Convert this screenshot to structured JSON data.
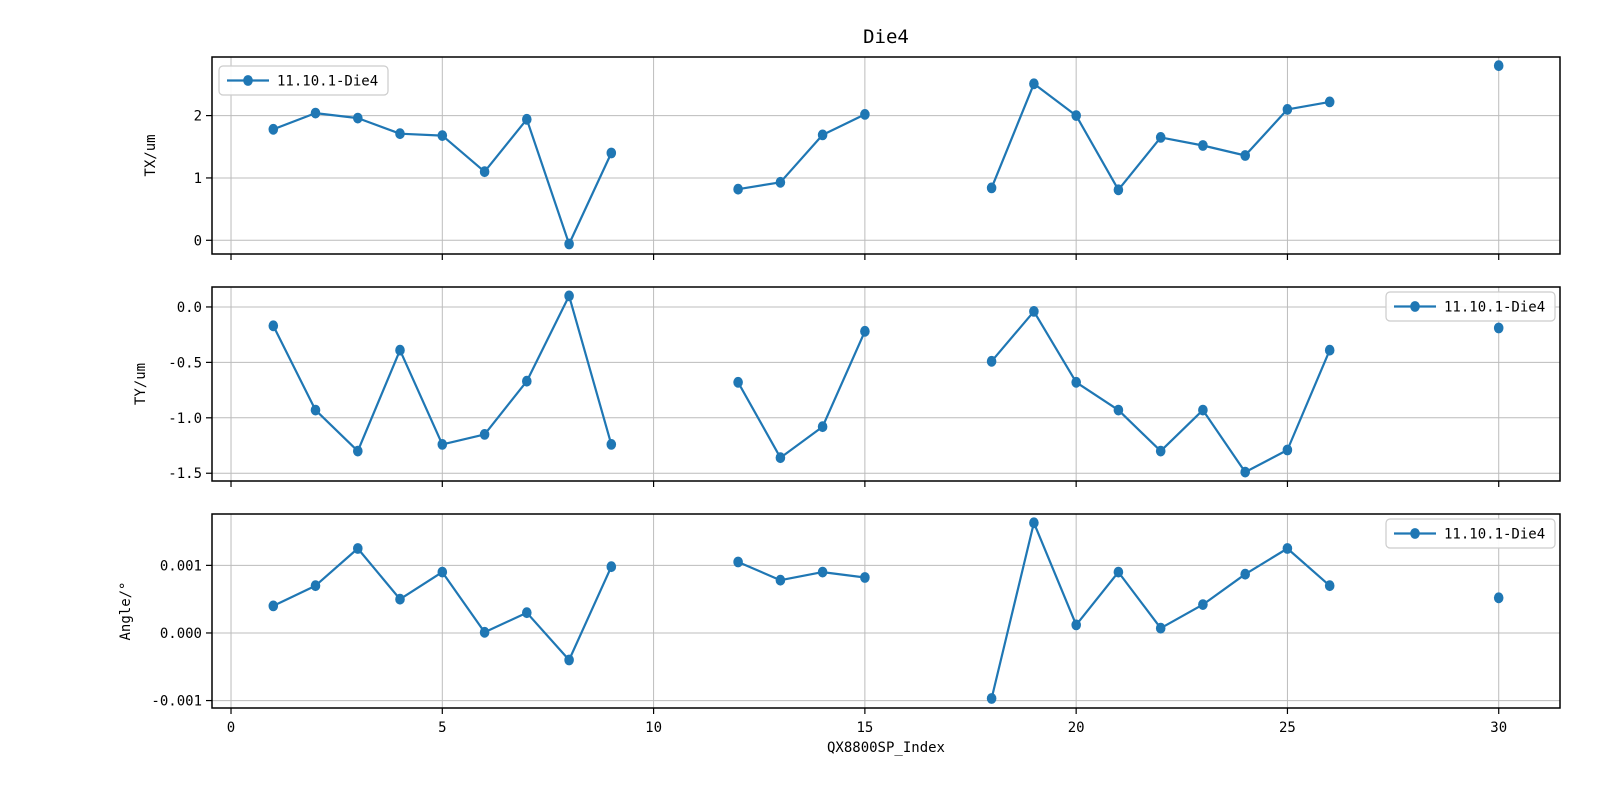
{
  "figure": {
    "title": "Die4",
    "xlabel": "QX8800SP_Index",
    "background": "#ffffff",
    "accent_color": "#1f77b4",
    "grid_color": "#bcbcbc",
    "spine_color": "#000000",
    "legend_border_color": "#cccccc",
    "legend_label": "11.10.1-Die4"
  },
  "chart_data": [
    {
      "type": "line",
      "title": "Die4",
      "ylabel": "TX/um",
      "xlabel": "",
      "x": [
        1,
        2,
        3,
        4,
        5,
        6,
        7,
        8,
        9,
        12,
        13,
        14,
        15,
        18,
        19,
        20,
        21,
        22,
        23,
        24,
        25,
        26,
        30
      ],
      "series": [
        {
          "name": "11.10.1-Die4",
          "color": "#1f77b4",
          "marker": "o",
          "values": [
            1.78,
            2.04,
            1.96,
            1.71,
            1.68,
            1.1,
            1.94,
            -0.06,
            1.4,
            0.82,
            0.93,
            1.69,
            2.02,
            0.84,
            2.51,
            2.0,
            0.81,
            1.65,
            1.52,
            1.36,
            2.1,
            2.22,
            2.8
          ]
        }
      ],
      "xlim": [
        -0.45,
        31.45
      ],
      "ylim": [
        -0.22,
        2.94
      ],
      "xticks": [
        0,
        5,
        10,
        15,
        20,
        25,
        30
      ],
      "xtick_labels": [],
      "yticks": [
        0,
        1,
        2
      ],
      "ytick_labels": [
        "0",
        "1",
        "2"
      ],
      "grid": true,
      "legend_position": "upper-left",
      "gap_break": true
    },
    {
      "type": "line",
      "title": "",
      "ylabel": "TY/um",
      "xlabel": "",
      "x": [
        1,
        2,
        3,
        4,
        5,
        6,
        7,
        8,
        9,
        12,
        13,
        14,
        15,
        18,
        19,
        20,
        21,
        22,
        23,
        24,
        25,
        26,
        30
      ],
      "series": [
        {
          "name": "11.10.1-Die4",
          "color": "#1f77b4",
          "marker": "o",
          "values": [
            -0.17,
            -0.93,
            -1.3,
            -0.39,
            -1.24,
            -1.15,
            -0.67,
            0.1,
            -1.24,
            -0.68,
            -1.36,
            -1.08,
            -0.22,
            -0.49,
            -0.04,
            -0.68,
            -0.93,
            -1.3,
            -0.93,
            -1.49,
            -1.29,
            -0.39,
            -0.19
          ]
        }
      ],
      "xlim": [
        -0.45,
        31.45
      ],
      "ylim": [
        -1.57,
        0.18
      ],
      "xticks": [
        0,
        5,
        10,
        15,
        20,
        25,
        30
      ],
      "xtick_labels": [],
      "yticks": [
        0,
        -0.5,
        -1,
        -1.5
      ],
      "ytick_labels": [
        "0.0",
        "-0.5",
        "-1.0",
        "-1.5"
      ],
      "grid": true,
      "legend_position": "upper-right",
      "gap_break": true
    },
    {
      "type": "line",
      "title": "",
      "ylabel": "Angle/°",
      "xlabel": "QX8800SP_Index",
      "x": [
        1,
        2,
        3,
        4,
        5,
        6,
        7,
        8,
        9,
        12,
        13,
        14,
        15,
        18,
        19,
        20,
        21,
        22,
        23,
        24,
        25,
        26,
        30
      ],
      "series": [
        {
          "name": "11.10.1-Die4",
          "color": "#1f77b4",
          "marker": "o",
          "values": [
            0.0004,
            0.0007,
            0.00125,
            0.0005,
            0.0009,
            1e-05,
            0.0003,
            -0.0004,
            0.00098,
            0.00105,
            0.00078,
            0.0009,
            0.00082,
            -0.00097,
            0.00163,
            0.00012,
            0.0009,
            7e-05,
            0.00042,
            0.00087,
            0.00125,
            0.0007,
            0.00052
          ]
        }
      ],
      "xlim": [
        -0.45,
        31.45
      ],
      "ylim": [
        -0.00111,
        0.00176
      ],
      "xticks": [
        0,
        5,
        10,
        15,
        20,
        25,
        30
      ],
      "xtick_labels": [
        "0",
        "5",
        "10",
        "15",
        "20",
        "25",
        "30"
      ],
      "yticks": [
        0.001,
        0,
        -0.001
      ],
      "ytick_labels": [
        "0.001",
        "0.000",
        "-0.001"
      ],
      "grid": true,
      "legend_position": "upper-right",
      "gap_break": true
    }
  ]
}
